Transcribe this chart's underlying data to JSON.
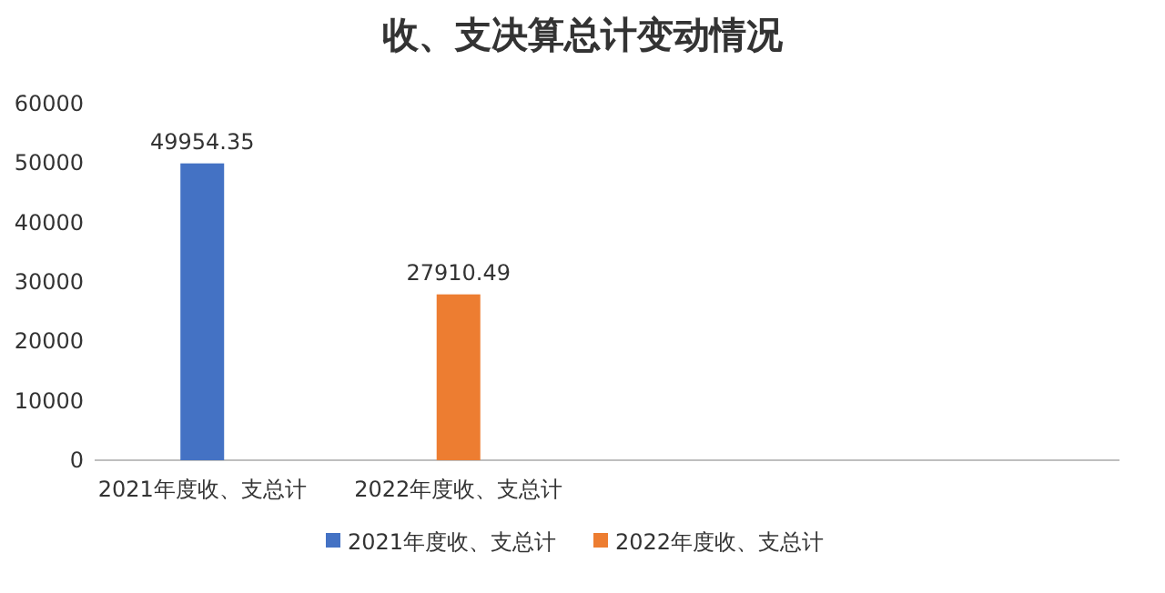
{
  "chart_data": {
    "type": "bar",
    "title": "收、支决算总计变动情况",
    "categories": [
      "2021年度收、支总计",
      "2022年度收、支总计",
      null,
      null
    ],
    "series": [
      {
        "name": "2021年度收、支总计",
        "color": "#4472c4",
        "values": [
          49954.35,
          null,
          null,
          null
        ]
      },
      {
        "name": "2022年度收、支总计",
        "color": "#ed7d31",
        "values": [
          null,
          27910.49,
          null,
          null
        ]
      }
    ],
    "ylim": [
      0,
      60000
    ],
    "yticks": [
      0,
      10000,
      20000,
      30000,
      40000,
      50000,
      60000
    ],
    "data_labels": true,
    "legend": "bottom"
  }
}
